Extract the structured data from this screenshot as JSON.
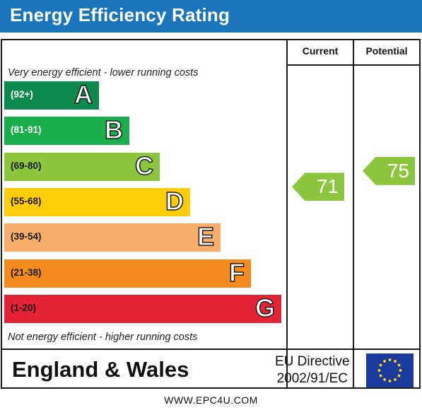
{
  "header": {
    "title": "Energy Efficiency Rating"
  },
  "columns": {
    "current": "Current",
    "potential": "Potential"
  },
  "notes": {
    "top": "Very energy efficient - lower running costs",
    "bottom": "Not energy efficient - higher running costs"
  },
  "chart_data": {
    "type": "bar",
    "title": "Energy Efficiency Rating",
    "categories": [
      "A",
      "B",
      "C",
      "D",
      "E",
      "F",
      "G"
    ],
    "ranges": [
      "(92+)",
      "(81-91)",
      "(69-80)",
      "(55-68)",
      "(39-54)",
      "(21-38)",
      "(1-20)"
    ],
    "colors": [
      "#0f8a4f",
      "#1aae4c",
      "#8cc63e",
      "#fecc09",
      "#f8ad6b",
      "#f28a1e",
      "#e52336"
    ],
    "current": {
      "value": 71,
      "band": "C"
    },
    "potential": {
      "value": 75,
      "band": "C"
    }
  },
  "footer": {
    "region": "England & Wales",
    "directive_line1": "EU Directive",
    "directive_line2": "2002/91/EC",
    "website": "WWW.EPC4U.COM"
  },
  "icons": {
    "flag": "eu-flag-icon"
  }
}
